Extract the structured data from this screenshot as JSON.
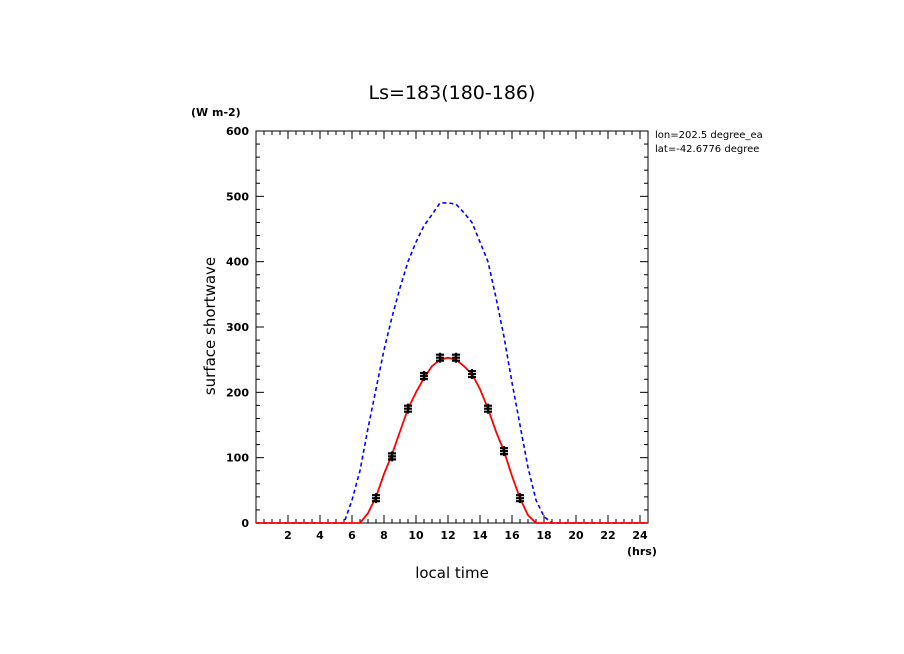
{
  "chart_data": {
    "type": "line",
    "title": "Ls=183(180-186)",
    "xlabel": "local time",
    "ylabel": "surface shortwave",
    "x_unit": "(hrs)",
    "y_unit": "(W m-2)",
    "annotations": [
      "lon=202.5 degree_ea",
      "lat=-42.6776 degree"
    ],
    "xlim": [
      0,
      24.5
    ],
    "ylim": [
      0,
      600
    ],
    "x_ticks": [
      2,
      4,
      6,
      8,
      10,
      12,
      14,
      16,
      18,
      20,
      22,
      24
    ],
    "y_ticks": [
      0,
      100,
      200,
      300,
      400,
      500,
      600
    ],
    "grid": false,
    "series": [
      {
        "style": "dashed-line",
        "color": "#0000ff",
        "x": [
          0,
          5.5,
          6,
          6.5,
          7,
          7.5,
          8,
          8.5,
          9,
          9.5,
          10,
          10.5,
          11,
          11.5,
          12,
          12.5,
          13,
          13.5,
          14,
          14.5,
          15,
          15.5,
          16,
          16.5,
          17,
          17.5,
          18,
          18.5,
          24.5
        ],
        "y": [
          0,
          0,
          35,
          80,
          145,
          205,
          265,
          315,
          360,
          400,
          430,
          455,
          472,
          490,
          490,
          488,
          475,
          460,
          430,
          400,
          345,
          285,
          215,
          150,
          85,
          35,
          10,
          0,
          0
        ]
      },
      {
        "style": "solid-line",
        "color": "#ff0000",
        "x": [
          0,
          6.5,
          7,
          7.5,
          8,
          8.5,
          9,
          9.5,
          10,
          10.5,
          11,
          11.5,
          12,
          12.5,
          13,
          13.5,
          14,
          14.5,
          15,
          15.5,
          16,
          16.5,
          17,
          17.5,
          24.5
        ],
        "y": [
          0,
          0,
          15,
          40,
          75,
          105,
          140,
          175,
          200,
          222,
          240,
          250,
          253,
          250,
          240,
          228,
          205,
          175,
          140,
          110,
          72,
          38,
          12,
          0,
          0
        ]
      },
      {
        "style": "cross-markers",
        "color": "#000000",
        "x": [
          7.5,
          8.5,
          9.5,
          10.5,
          11.5,
          12.5,
          13.5,
          14.5,
          15.5,
          16.5
        ],
        "y": [
          38,
          102,
          175,
          225,
          253,
          253,
          228,
          175,
          110,
          38
        ]
      }
    ]
  }
}
